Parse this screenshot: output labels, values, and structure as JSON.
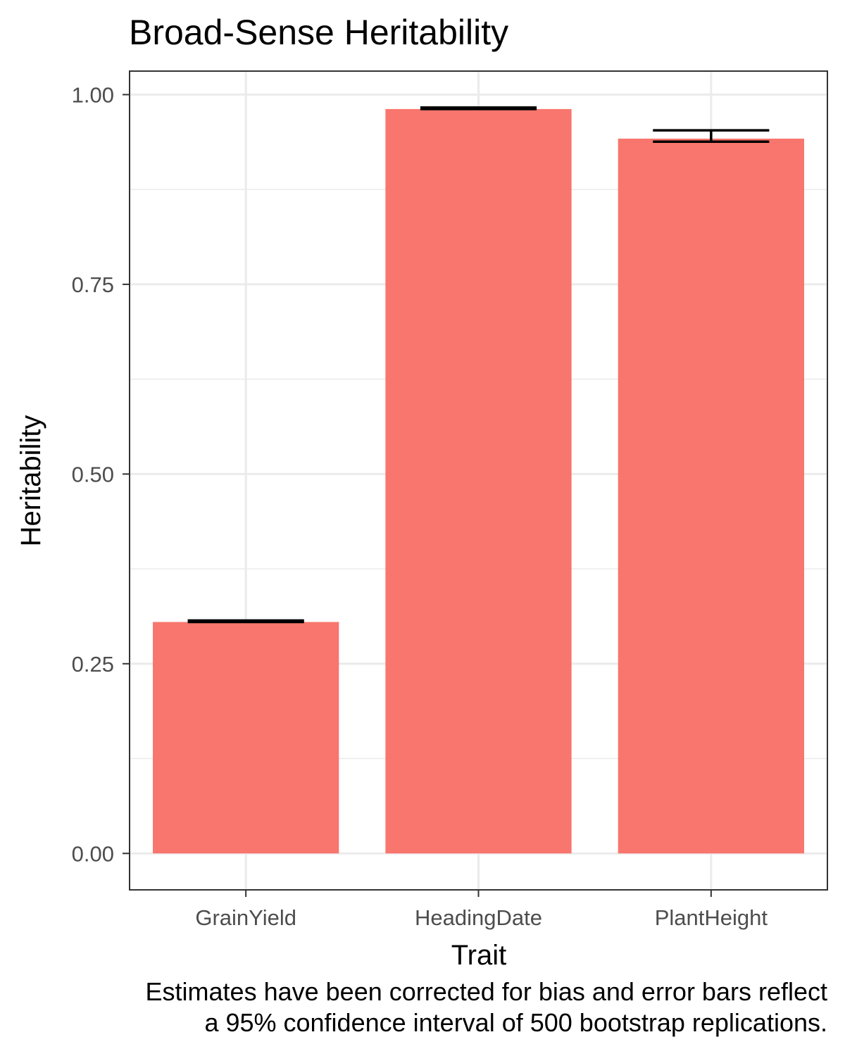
{
  "chart_data": {
    "type": "bar",
    "title": "Broad-Sense Heritability",
    "xlabel": "Trait",
    "ylabel": "Heritability",
    "caption_lines": [
      "Estimates have been corrected for bias and error bars reflect",
      "a 95% confidence interval of 500 bootstrap replications."
    ],
    "categories": [
      "GrainYield",
      "HeadingDate",
      "PlantHeight"
    ],
    "values": [
      0.305,
      0.981,
      0.942
    ],
    "error_low": [
      0.305,
      0.981,
      0.938
    ],
    "error_high": [
      0.307,
      0.983,
      0.953
    ],
    "ylim": [
      -0.048,
      1.031
    ],
    "yticks": [
      0.0,
      0.25,
      0.5,
      0.75,
      1.0
    ],
    "ytick_labels": [
      "0.00",
      "0.25",
      "0.50",
      "0.75",
      "1.00"
    ],
    "grid": true,
    "legend": "none",
    "colors": {
      "bar": "#F8766D",
      "errorbar": "#000000",
      "grid": "#EBEBEB",
      "panel_border": "#333333"
    }
  }
}
